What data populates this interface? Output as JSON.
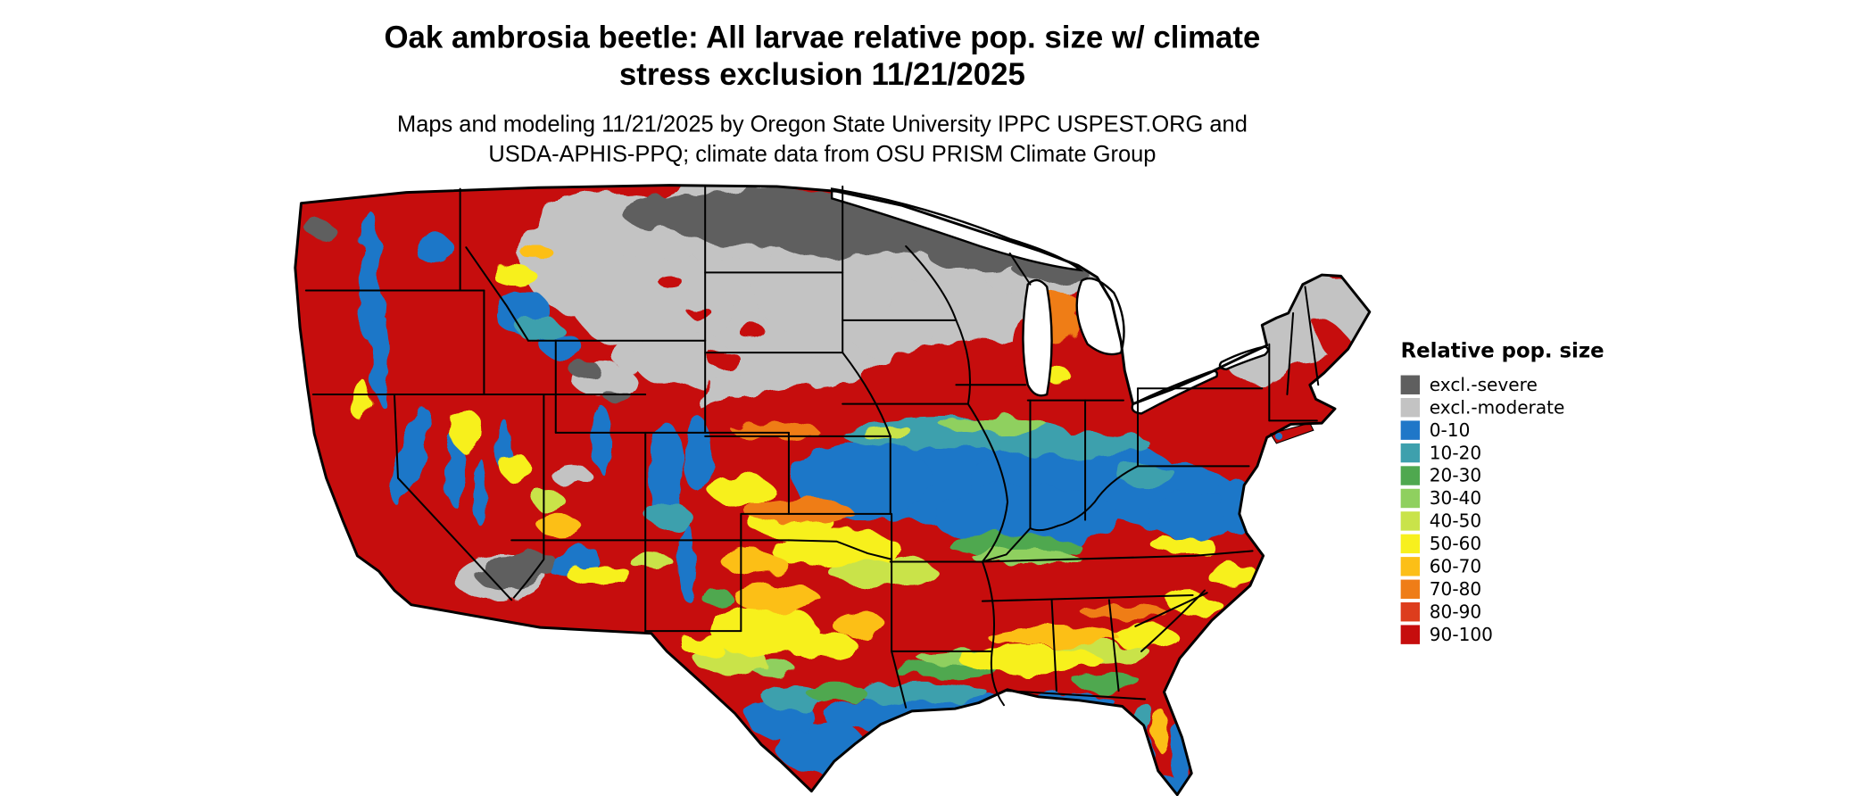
{
  "title": {
    "line1": "Oak ambrosia beetle: All larvae relative pop. size w/ climate",
    "line2": "stress exclusion 11/21/2025"
  },
  "subtitle": {
    "line1": "Maps and modeling 11/21/2025 by Oregon State University IPPC USPEST.ORG and",
    "line2": "USDA-APHIS-PPQ; climate data from OSU PRISM Climate Group"
  },
  "legend": {
    "title": "Relative pop. size",
    "entries": [
      {
        "key": "excl-severe",
        "label": "excl.-severe",
        "color": "#5f5f5f"
      },
      {
        "key": "excl-moderate",
        "label": "excl.-moderate",
        "color": "#c3c3c3"
      },
      {
        "key": "0-10",
        "label": "0-10",
        "color": "#1f77c8"
      },
      {
        "key": "10-20",
        "label": "10-20",
        "color": "#3ea0ad"
      },
      {
        "key": "20-30",
        "label": "20-30",
        "color": "#4fa84f"
      },
      {
        "key": "30-40",
        "label": "30-40",
        "color": "#8fd05f"
      },
      {
        "key": "40-50",
        "label": "40-50",
        "color": "#c9e34a"
      },
      {
        "key": "50-60",
        "label": "50-60",
        "color": "#f7f01e"
      },
      {
        "key": "60-70",
        "label": "60-70",
        "color": "#fcbf17"
      },
      {
        "key": "70-80",
        "label": "70-80",
        "color": "#ef7d17"
      },
      {
        "key": "80-90",
        "label": "80-90",
        "color": "#dd3d1d"
      },
      {
        "key": "90-100",
        "label": "90-100",
        "color": "#c60d0d"
      }
    ]
  }
}
